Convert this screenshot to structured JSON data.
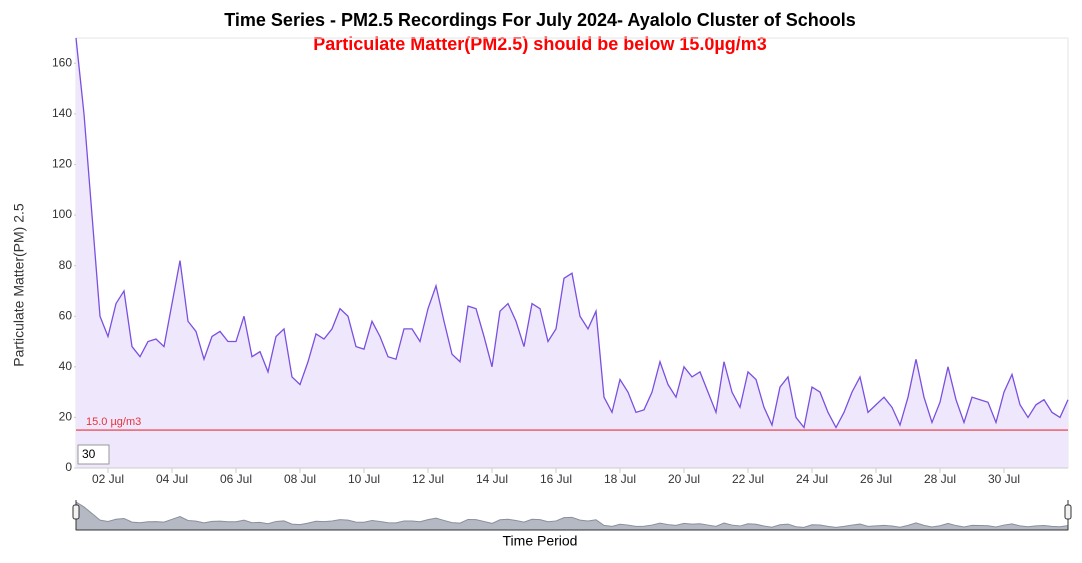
{
  "chart_data": {
    "type": "area",
    "title": "Time Series - PM2.5 Recordings For July 2024- Ayalolo Cluster of Schools",
    "subtitle": "Particulate Matter(PM2.5) should be below 15.0µg/m3",
    "y_label": "Particulate Matter(PM) 2.5",
    "x_label": "Time Period",
    "categories": [
      null,
      null,
      null,
      null,
      "02 Jul",
      null,
      null,
      null,
      null,
      null,
      null,
      null,
      "04 Jul",
      null,
      null,
      null,
      null,
      null,
      null,
      null,
      "06 Jul",
      null,
      null,
      null,
      null,
      null,
      null,
      null,
      "08 Jul",
      null,
      null,
      null,
      null,
      null,
      null,
      null,
      "10 Jul",
      null,
      null,
      null,
      null,
      null,
      null,
      null,
      "12 Jul",
      null,
      null,
      null,
      null,
      null,
      null,
      null,
      "14 Jul",
      null,
      null,
      null,
      null,
      null,
      null,
      null,
      "16 Jul",
      null,
      null,
      null,
      null,
      null,
      null,
      null,
      "18 Jul",
      null,
      null,
      null,
      null,
      null,
      null,
      null,
      "20 Jul",
      null,
      null,
      null,
      null,
      null,
      null,
      null,
      "22 Jul",
      null,
      null,
      null,
      null,
      null,
      null,
      null,
      "24 Jul",
      null,
      null,
      null,
      null,
      null,
      null,
      null,
      "26 Jul",
      null,
      null,
      null,
      null,
      null,
      null,
      null,
      "28 Jul",
      null,
      null,
      null,
      null,
      null,
      null,
      null,
      "30 Jul",
      null,
      null,
      null,
      null,
      null,
      null,
      null,
      null
    ],
    "values": [
      170,
      140,
      100,
      60,
      52,
      65,
      70,
      48,
      44,
      50,
      51,
      48,
      65,
      82,
      58,
      54,
      43,
      52,
      54,
      50,
      50,
      60,
      44,
      46,
      38,
      52,
      55,
      36,
      33,
      42,
      53,
      51,
      55,
      63,
      60,
      48,
      47,
      58,
      52,
      44,
      43,
      55,
      55,
      50,
      63,
      72,
      58,
      45,
      42,
      64,
      63,
      52,
      40,
      62,
      65,
      58,
      48,
      65,
      63,
      50,
      55,
      75,
      77,
      60,
      55,
      62,
      28,
      22,
      35,
      30,
      22,
      23,
      30,
      42,
      33,
      28,
      40,
      36,
      38,
      30,
      22,
      42,
      30,
      24,
      38,
      35,
      24,
      17,
      32,
      36,
      20,
      16,
      32,
      30,
      22,
      16,
      22,
      30,
      36,
      22,
      25,
      28,
      24,
      17,
      28,
      43,
      28,
      18,
      26,
      40,
      27,
      18,
      28,
      27,
      26,
      18,
      30,
      37,
      25,
      20,
      25,
      27,
      22,
      20,
      27
    ],
    "color": "#7b4fe0",
    "fill": "#efe8fc",
    "ylim": [
      0,
      170
    ],
    "yticks": [
      0,
      20,
      40,
      60,
      80,
      100,
      120,
      140,
      160
    ],
    "threshold": {
      "value": 15,
      "label": "15.0 µg/m3",
      "color": "#e8313b"
    },
    "range_input": "30"
  }
}
